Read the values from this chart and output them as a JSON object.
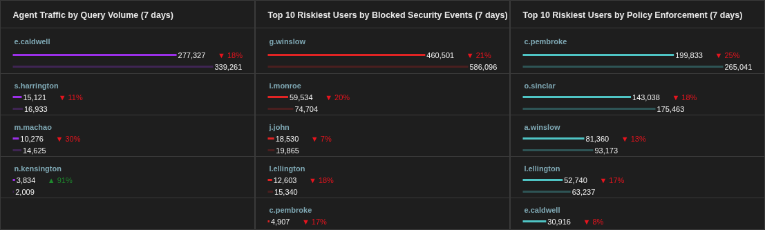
{
  "chart_data": [
    {
      "type": "bar",
      "orientation": "horizontal",
      "title": "Agent Traffic by Query Volume (7 days)",
      "categories": [
        "e.caldwell",
        "s.harrington",
        "m.machao",
        "n.kensington"
      ],
      "series": [
        {
          "color": "#9b30e8",
          "values": [
            277327,
            15121,
            10276,
            3834
          ],
          "value_labels": [
            "277,327",
            "15,121",
            "10,276",
            "3,834"
          ]
        },
        {
          "color": "#3f2553",
          "values": [
            339261,
            16933,
            14625,
            2009
          ],
          "value_labels": [
            "339,261",
            "16,933",
            "14,625",
            "2,009"
          ]
        }
      ],
      "annotations": [
        "▼ 18%",
        "▼ 11%",
        "▼ 30%",
        "▲ 91%"
      ]
    },
    {
      "type": "bar",
      "orientation": "horizontal",
      "title": "Top 10 Riskiest Users by Blocked Security Events (7 days)",
      "categories": [
        "g.winslow",
        "i.monroe",
        "j.john",
        "l.ellington",
        "c.pembroke"
      ],
      "series": [
        {
          "color": "#e02424",
          "values": [
            460501,
            59534,
            18530,
            12603,
            4907
          ],
          "value_labels": [
            "460,501",
            "59,534",
            "18,530",
            "12,603",
            "4,907"
          ]
        },
        {
          "color": "#4a1f1f",
          "values": [
            586096,
            74704,
            19865,
            15340,
            null
          ],
          "value_labels": [
            "586,096",
            "74,704",
            "19,865",
            "15,340",
            null
          ]
        }
      ],
      "annotations": [
        "▼ 21%",
        "▼ 20%",
        "▼ 7%",
        "▼ 18%",
        "▼ 17%"
      ]
    },
    {
      "type": "bar",
      "orientation": "horizontal",
      "title": "Top 10 Riskiest Users by Policy Enforcement (7 days)",
      "categories": [
        "c.pembroke",
        "o.sinclar",
        "a.winslow",
        "l.ellington",
        "e.caldwell"
      ],
      "series": [
        {
          "color": "#4fc4c4",
          "values": [
            199833,
            143038,
            81360,
            52740,
            30916
          ],
          "value_labels": [
            "199,833",
            "143,038",
            "81,360",
            "52,740",
            "30,916"
          ]
        },
        {
          "color": "#2e5455",
          "values": [
            265041,
            175463,
            93173,
            63237,
            null
          ],
          "value_labels": [
            "265,041",
            "175,463",
            "93,173",
            "63,237",
            null
          ]
        }
      ],
      "annotations": [
        "▼ 25%",
        "▼ 18%",
        "▼ 13%",
        "▼ 17%",
        "▼ 8%"
      ]
    }
  ]
}
